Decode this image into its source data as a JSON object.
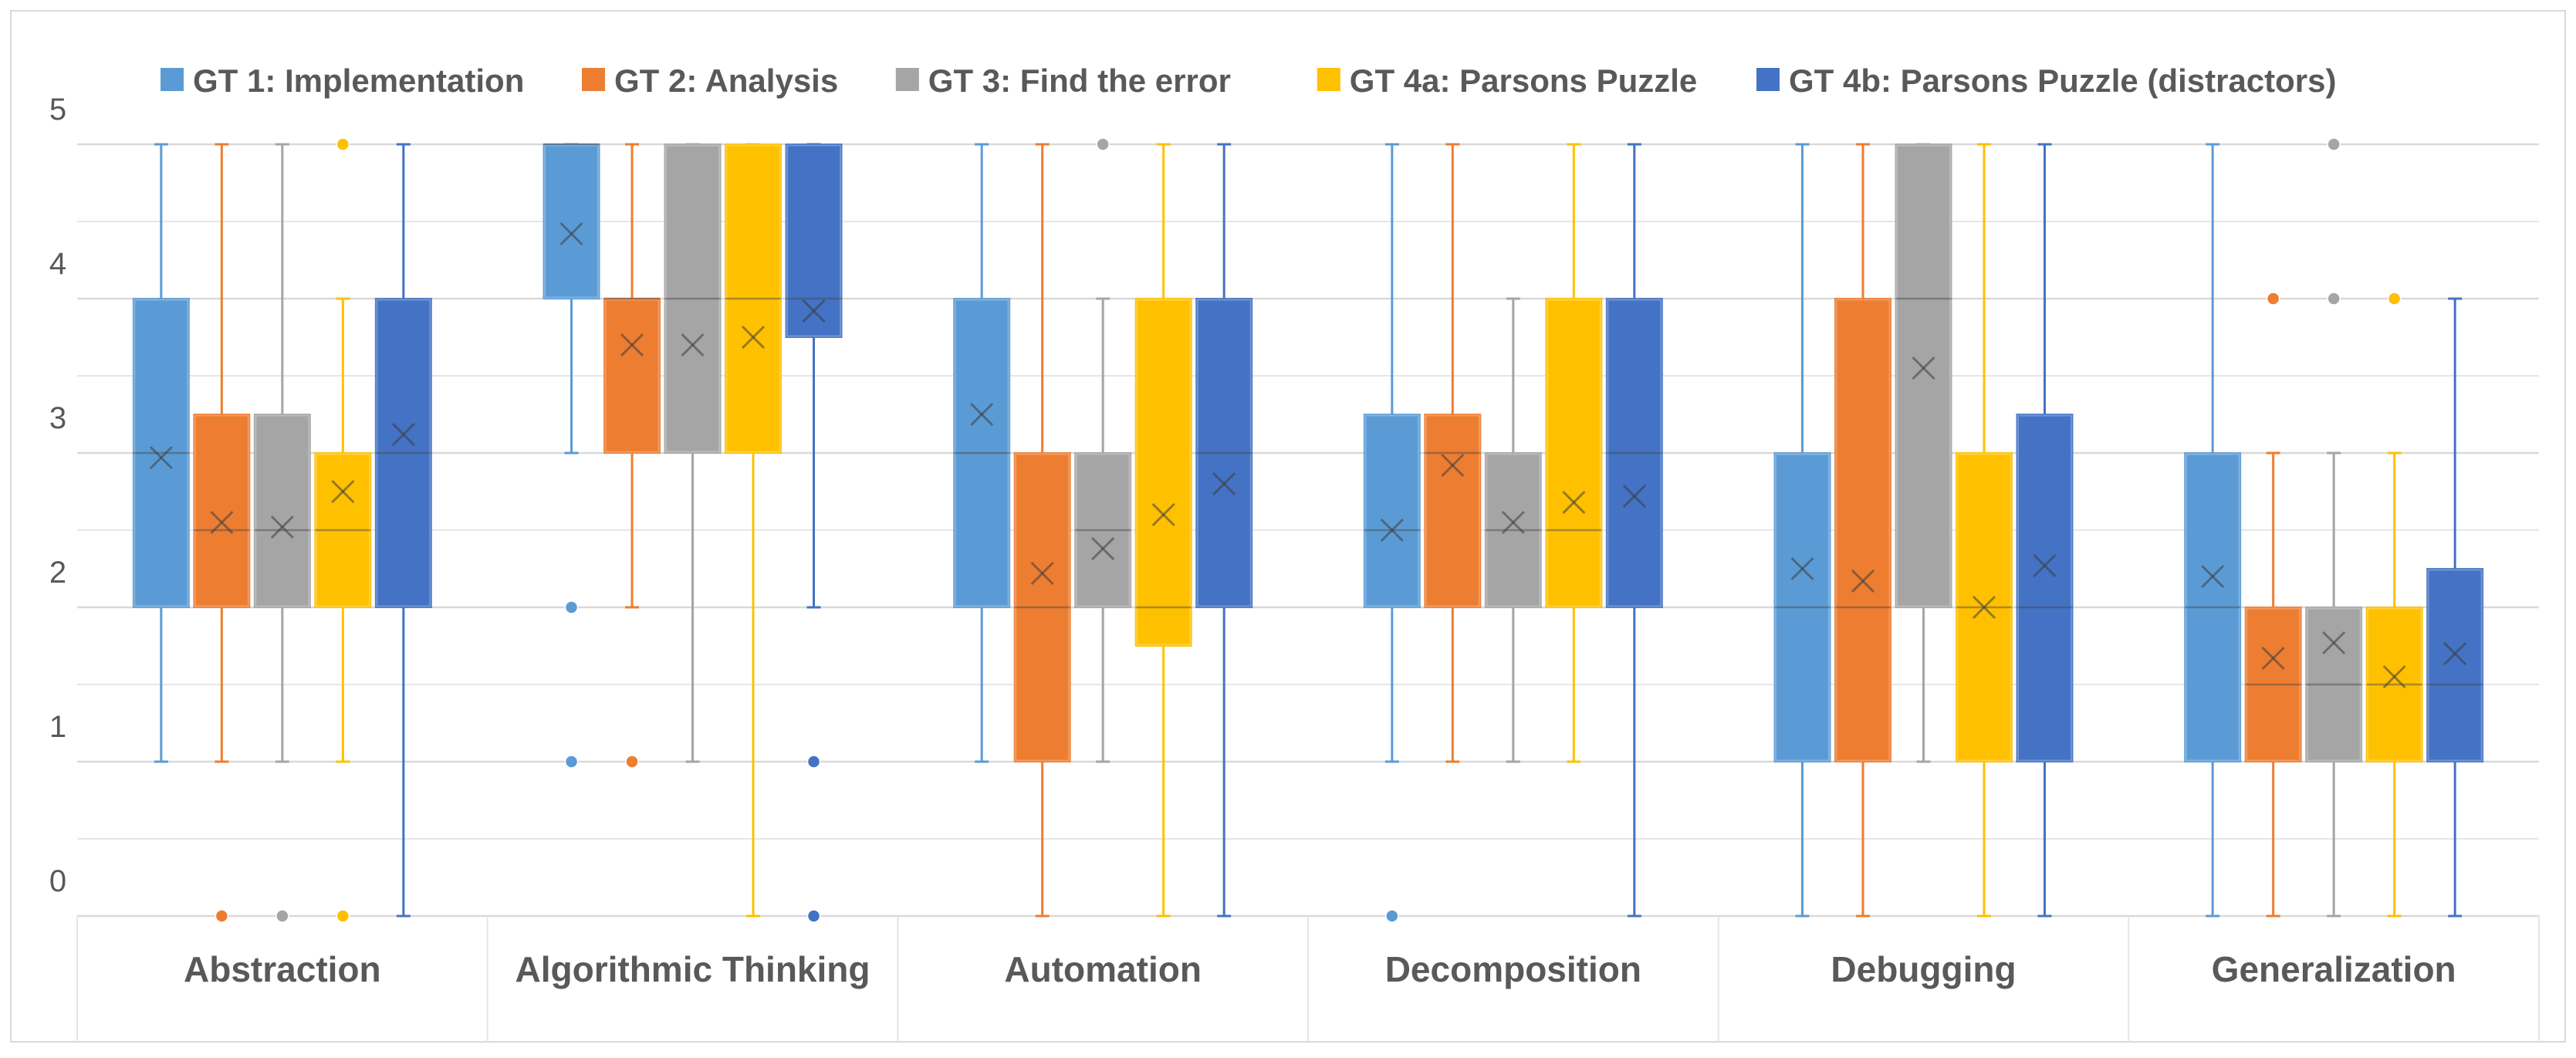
{
  "chart_data": {
    "type": "box",
    "title": "",
    "xlabel": "",
    "ylabel": "",
    "ylim": [
      0,
      5
    ],
    "y_ticks": [
      "0",
      "1",
      "2",
      "3",
      "4",
      "5"
    ],
    "grid": true,
    "legend_position": "top",
    "categories": [
      "Abstraction",
      "Algorithmic Thinking",
      "Automation",
      "Decomposition",
      "Debugging",
      "Generalization"
    ],
    "series": [
      {
        "name": "GT 1: Implementation",
        "color": "#5B9BD5",
        "boxes": [
          {
            "min": 1,
            "q1": 2,
            "median": 3,
            "q3": 4,
            "max": 5,
            "mean": 2.97,
            "outliers": []
          },
          {
            "min": 3,
            "q1": 4,
            "median": 5,
            "q3": 5,
            "max": 5,
            "mean": 4.42,
            "outliers": [
              2,
              1
            ]
          },
          {
            "min": 1,
            "q1": 2,
            "median": 3,
            "q3": 4,
            "max": 5,
            "mean": 3.25,
            "outliers": []
          },
          {
            "min": 1,
            "q1": 2,
            "median": 2.5,
            "q3": 3.25,
            "max": 5,
            "mean": 2.5,
            "outliers": [
              0
            ]
          },
          {
            "min": 0,
            "q1": 1,
            "median": 2,
            "q3": 3,
            "max": 5,
            "mean": 2.25,
            "outliers": []
          },
          {
            "min": 0,
            "q1": 1,
            "median": 2,
            "q3": 3,
            "max": 5,
            "mean": 2.2,
            "outliers": []
          }
        ]
      },
      {
        "name": "GT 2: Analysis",
        "color": "#ED7D31",
        "boxes": [
          {
            "min": 1,
            "q1": 2,
            "median": 2.5,
            "q3": 3.25,
            "max": 5,
            "mean": 2.55,
            "outliers": [
              0
            ]
          },
          {
            "min": 2,
            "q1": 3,
            "median": 4,
            "q3": 4,
            "max": 5,
            "mean": 3.7,
            "outliers": [
              1
            ]
          },
          {
            "min": 0,
            "q1": 1,
            "median": 2,
            "q3": 3,
            "max": 5,
            "mean": 2.22,
            "outliers": []
          },
          {
            "min": 1,
            "q1": 2,
            "median": 3,
            "q3": 3.25,
            "max": 5,
            "mean": 2.92,
            "outliers": []
          },
          {
            "min": 0,
            "q1": 1,
            "median": 2,
            "q3": 4,
            "max": 5,
            "mean": 2.17,
            "outliers": []
          },
          {
            "min": 0,
            "q1": 1,
            "median": 1.5,
            "q3": 2,
            "max": 3,
            "mean": 1.67,
            "outliers": [
              4
            ]
          }
        ]
      },
      {
        "name": "GT 3: Find the error",
        "color": "#A5A5A5",
        "boxes": [
          {
            "min": 1,
            "q1": 2,
            "median": 2.5,
            "q3": 3.25,
            "max": 5,
            "mean": 2.52,
            "outliers": [
              0
            ]
          },
          {
            "min": 1,
            "q1": 3,
            "median": 4,
            "q3": 5,
            "max": 5,
            "mean": 3.7,
            "outliers": []
          },
          {
            "min": 1,
            "q1": 2,
            "median": 2.5,
            "q3": 3,
            "max": 4,
            "mean": 2.38,
            "outliers": [
              5
            ]
          },
          {
            "min": 1,
            "q1": 2,
            "median": 2.5,
            "q3": 3,
            "max": 4,
            "mean": 2.55,
            "outliers": []
          },
          {
            "min": 1,
            "q1": 2,
            "median": 4,
            "q3": 5,
            "max": 5,
            "mean": 3.55,
            "outliers": []
          },
          {
            "min": 0,
            "q1": 1,
            "median": 1.5,
            "q3": 2,
            "max": 3,
            "mean": 1.77,
            "outliers": [
              5,
              4
            ]
          }
        ]
      },
      {
        "name": "GT 4a: Parsons Puzzle",
        "color": "#FFC000",
        "boxes": [
          {
            "min": 1,
            "q1": 2,
            "median": 2.5,
            "q3": 3,
            "max": 4,
            "mean": 2.75,
            "outliers": [
              5,
              0
            ]
          },
          {
            "min": 0,
            "q1": 3,
            "median": 4,
            "q3": 5,
            "max": 5,
            "mean": 3.75,
            "outliers": []
          },
          {
            "min": 0,
            "q1": 1.75,
            "median": 2,
            "q3": 4,
            "max": 5,
            "mean": 2.6,
            "outliers": []
          },
          {
            "min": 1,
            "q1": 2,
            "median": 2.5,
            "q3": 4,
            "max": 5,
            "mean": 2.68,
            "outliers": []
          },
          {
            "min": 0,
            "q1": 1,
            "median": 2,
            "q3": 3,
            "max": 5,
            "mean": 2,
            "outliers": []
          },
          {
            "min": 0,
            "q1": 1,
            "median": 1.5,
            "q3": 2,
            "max": 3,
            "mean": 1.55,
            "outliers": [
              4
            ]
          }
        ]
      },
      {
        "name": "GT 4b: Parsons Puzzle (distractors)",
        "color": "#4472C4",
        "boxes": [
          {
            "min": 0,
            "q1": 2,
            "median": 3,
            "q3": 4,
            "max": 5,
            "mean": 3.12,
            "outliers": []
          },
          {
            "min": 2,
            "q1": 3.75,
            "median": 4,
            "q3": 5,
            "max": 5,
            "mean": 3.92,
            "outliers": [
              1,
              0
            ]
          },
          {
            "min": 0,
            "q1": 2,
            "median": 3,
            "q3": 4,
            "max": 5,
            "mean": 2.8,
            "outliers": []
          },
          {
            "min": 0,
            "q1": 2,
            "median": 3,
            "q3": 4,
            "max": 5,
            "mean": 2.72,
            "outliers": []
          },
          {
            "min": 0,
            "q1": 1,
            "median": 2,
            "q3": 3.25,
            "max": 5,
            "mean": 2.27,
            "outliers": []
          },
          {
            "min": 0,
            "q1": 1,
            "median": 1.5,
            "q3": 2.25,
            "max": 4,
            "mean": 1.7,
            "outliers": []
          }
        ]
      }
    ]
  }
}
